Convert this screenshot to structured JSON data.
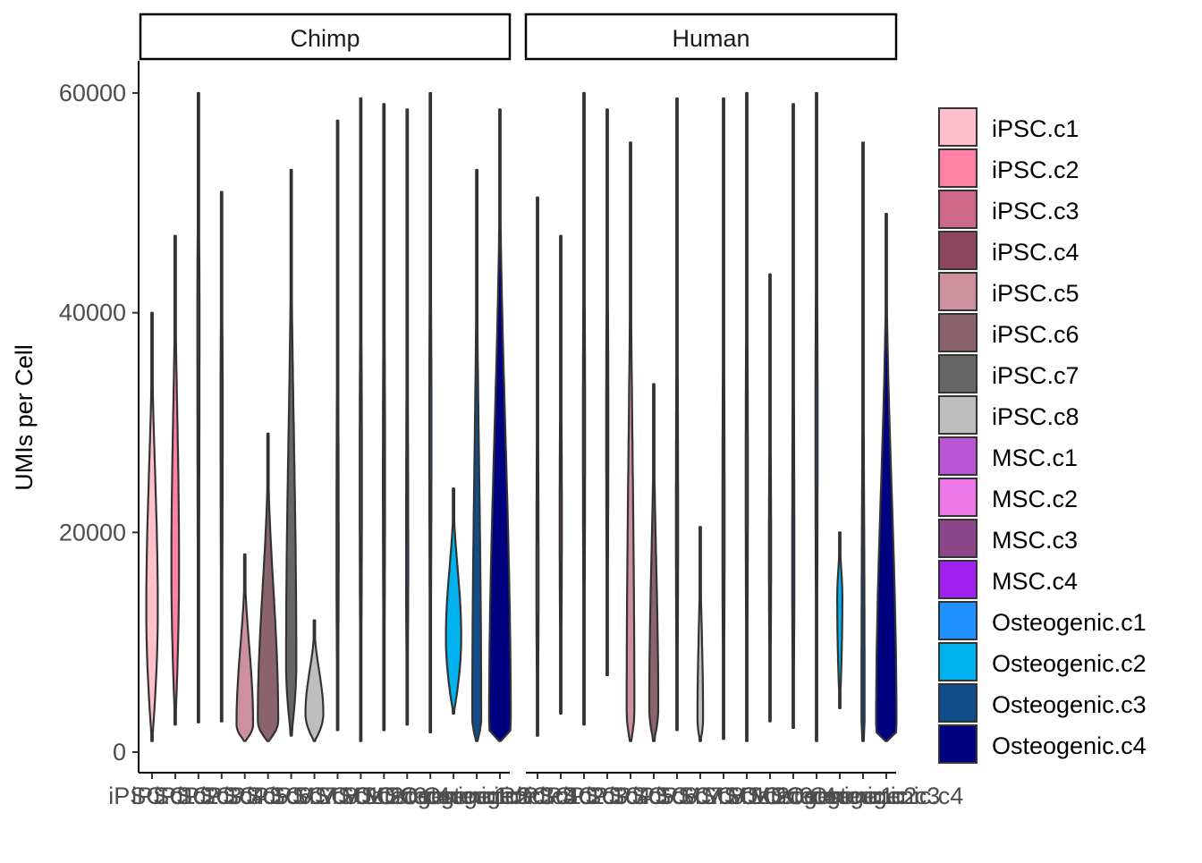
{
  "chart_data": {
    "type": "violin",
    "ylabel": "UMIs per Cell",
    "xlabel": "",
    "ylim": [
      0,
      60000
    ],
    "yticks": [
      0,
      20000,
      40000,
      60000
    ],
    "grid": false,
    "legend_position": "right",
    "categories": [
      "iPSC.c1",
      "iPSC.c2",
      "iPSC.c3",
      "iPSC.c4",
      "iPSC.c5",
      "iPSC.c6",
      "iPSC.c7",
      "iPSC.c8",
      "MSC.c1",
      "MSC.c2",
      "MSC.c3",
      "MSC.c4",
      "Osteogenic.c1",
      "Osteogenic.c2",
      "Osteogenic.c3",
      "Osteogenic.c4"
    ],
    "colors": [
      "#FFC0CB",
      "#FF82A4",
      "#CD6889",
      "#8B475D",
      "#CD919E",
      "#8B636C",
      "#666666",
      "#BEBEBE",
      "#BA55D3",
      "#EE7AE9",
      "#8B4789",
      "#A020F0",
      "#1E90FF",
      "#00B2EE",
      "#104E8B",
      "#000080"
    ],
    "panels": [
      {
        "name": "Chimp",
        "violins": [
          {
            "min": 1000,
            "max": 40000,
            "mode": 13000,
            "width": 0.45
          },
          {
            "min": 2500,
            "max": 47000,
            "mode": 17000,
            "width": 0.3
          },
          {
            "min": 2700,
            "max": 60000,
            "mode": 40000,
            "width": 0.05
          },
          {
            "min": 2800,
            "max": 51000,
            "mode": 32000,
            "width": 0.05
          },
          {
            "min": 1000,
            "max": 18000,
            "mode": 2500,
            "width": 0.65
          },
          {
            "min": 1000,
            "max": 29000,
            "mode": 2800,
            "width": 0.8
          },
          {
            "min": 1500,
            "max": 53000,
            "mode": 8000,
            "width": 0.4
          },
          {
            "min": 1000,
            "max": 12000,
            "mode": 3500,
            "width": 0.7
          },
          {
            "min": 2000,
            "max": 57500,
            "mode": 18000,
            "width": 0.06
          },
          {
            "min": 1000,
            "max": 59500,
            "mode": 25000,
            "width": 0.04
          },
          {
            "min": 2000,
            "max": 59000,
            "mode": 25000,
            "width": 0.04
          },
          {
            "min": 2500,
            "max": 58500,
            "mode": 17000,
            "width": 0.06
          },
          {
            "min": 1800,
            "max": 60000,
            "mode": 30000,
            "width": 0.03
          },
          {
            "min": 3500,
            "max": 24000,
            "mode": 10500,
            "width": 0.6
          },
          {
            "min": 1000,
            "max": 53000,
            "mode": 3000,
            "width": 0.35
          },
          {
            "min": 1000,
            "max": 58500,
            "mode": 2200,
            "width": 0.85
          }
        ]
      },
      {
        "name": "Human",
        "violins": [
          {
            "min": 1500,
            "max": 50500,
            "mode": 15000,
            "width": 0.05
          },
          {
            "min": 3500,
            "max": 47000,
            "mode": 21000,
            "width": 0.05
          },
          {
            "min": 2500,
            "max": 60000,
            "mode": 30000,
            "width": 0.03
          },
          {
            "min": 7000,
            "max": 58500,
            "mode": 30000,
            "width": 0.03
          },
          {
            "min": 1000,
            "max": 55500,
            "mode": 3500,
            "width": 0.3
          },
          {
            "min": 1000,
            "max": 33500,
            "mode": 4000,
            "width": 0.35
          },
          {
            "min": 2000,
            "max": 59500,
            "mode": 20000,
            "width": 0.04
          },
          {
            "min": 1000,
            "max": 20500,
            "mode": 3000,
            "width": 0.22
          },
          {
            "min": 1200,
            "max": 59500,
            "mode": 20000,
            "width": 0.05
          },
          {
            "min": 1000,
            "max": 60000,
            "mode": 25000,
            "width": 0.04
          },
          {
            "min": 2800,
            "max": 43500,
            "mode": 18000,
            "width": 0.06
          },
          {
            "min": 2200,
            "max": 59000,
            "mode": 16000,
            "width": 0.06
          },
          {
            "min": 1000,
            "max": 60000,
            "mode": 30000,
            "width": 0.03
          },
          {
            "min": 4000,
            "max": 20000,
            "mode": 14000,
            "width": 0.2
          },
          {
            "min": 1000,
            "max": 55500,
            "mode": 3000,
            "width": 0.12
          },
          {
            "min": 1000,
            "max": 49000,
            "mode": 2000,
            "width": 0.8
          }
        ]
      }
    ],
    "x_tick_labels_overlapping_note": ""
  }
}
